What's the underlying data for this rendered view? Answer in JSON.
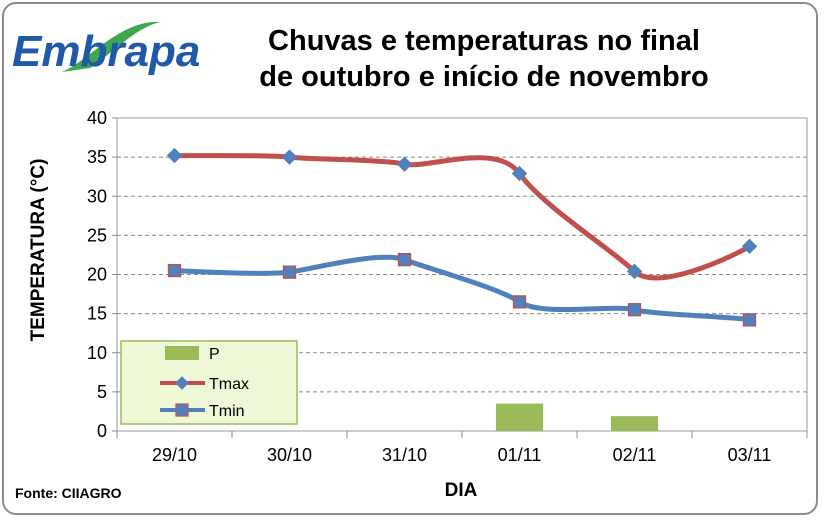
{
  "logo": {
    "text": "Embrapa",
    "color": "#1f5aa8",
    "swoosh_color": "#2a9d3a"
  },
  "source_label": "Fonte: CIIAGRO",
  "chart_data": {
    "type": "line",
    "title_lines": [
      "Chuvas e temperaturas no final",
      "de outubro e início de novembro"
    ],
    "xlabel": "DIA",
    "ylabel": "TEMPERATURA (°C)",
    "categories": [
      "29/10",
      "30/10",
      "31/10",
      "01/11",
      "02/11",
      "03/11"
    ],
    "ylim": [
      0,
      40
    ],
    "yticks": [
      0,
      5,
      10,
      15,
      20,
      25,
      30,
      35,
      40
    ],
    "grid": true,
    "legend_position": "bottom-left",
    "series": [
      {
        "name": "P",
        "type": "bar",
        "color": "#9bbb59",
        "values": [
          0,
          0,
          0,
          3.5,
          1.9,
          0
        ]
      },
      {
        "name": "Tmax",
        "type": "line",
        "color": "#c0504d",
        "marker": "diamond",
        "values": [
          35.2,
          35.0,
          34.1,
          32.9,
          20.4,
          23.6
        ]
      },
      {
        "name": "Tmin",
        "type": "line",
        "color": "#4f81bd",
        "marker": "square",
        "values": [
          20.5,
          20.3,
          21.9,
          16.5,
          15.5,
          14.2
        ]
      }
    ]
  }
}
